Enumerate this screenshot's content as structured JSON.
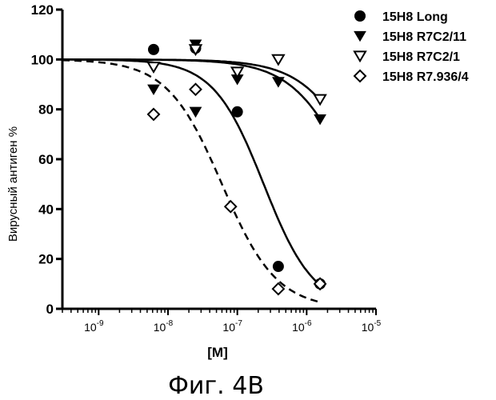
{
  "chart_data": {
    "type": "scatter",
    "title": "",
    "xlabel": "[M]",
    "ylabel": "Вирусный антиген %",
    "xscale": "log",
    "xlim": [
      3e-10,
      1e-05
    ],
    "ylim": [
      0,
      120
    ],
    "yticks": [
      0,
      20,
      40,
      60,
      80,
      100,
      120
    ],
    "xticks": [
      {
        "value": 1e-09,
        "base": "10",
        "exp": "-9"
      },
      {
        "value": 1e-08,
        "base": "10",
        "exp": "-8"
      },
      {
        "value": 1e-07,
        "base": "10",
        "exp": "-7"
      },
      {
        "value": 1e-06,
        "base": "10",
        "exp": "-6"
      },
      {
        "value": 1e-05,
        "base": "10",
        "exp": "-5"
      }
    ],
    "legend_position": "top-right",
    "series": [
      {
        "name": "15H8 Long",
        "marker": "filled-circle",
        "points": [
          [
            6.2e-09,
            104
          ],
          [
            2.5e-08,
            104.5
          ],
          [
            1e-07,
            79
          ],
          [
            3.9e-07,
            17
          ],
          [
            1.56e-06,
            10
          ]
        ],
        "fit": {
          "style": "solid",
          "top": 100,
          "bottom": 0,
          "ec50": 2.4e-07,
          "hill": 1.2
        }
      },
      {
        "name": "15H8 R7C2/11",
        "marker": "filled-triangle-down",
        "points": [
          [
            6.2e-09,
            88
          ],
          [
            2.5e-08,
            106
          ],
          [
            2.5e-08,
            79
          ],
          [
            1e-07,
            92
          ],
          [
            3.9e-07,
            91
          ],
          [
            1.56e-06,
            76
          ]
        ],
        "fit": {
          "style": "solid",
          "top": 100,
          "bottom": 0,
          "ec50": 5e-06,
          "hill": 1.0
        }
      },
      {
        "name": "15H8 R7C2/1",
        "marker": "open-triangle-down",
        "points": [
          [
            6.2e-09,
            97
          ],
          [
            2.5e-08,
            104
          ],
          [
            1e-07,
            95
          ],
          [
            3.9e-07,
            100
          ],
          [
            1.56e-06,
            84
          ]
        ],
        "fit": {
          "style": "solid",
          "top": 100,
          "bottom": 0,
          "ec50": 8e-06,
          "hill": 1.0
        }
      },
      {
        "name": "15H8 R7.936/4",
        "marker": "open-diamond",
        "points": [
          [
            6.2e-09,
            78
          ],
          [
            2.5e-08,
            88
          ],
          [
            8e-08,
            41
          ],
          [
            3.9e-07,
            8
          ],
          [
            1.56e-06,
            10
          ]
        ],
        "fit": {
          "style": "dashed",
          "top": 100,
          "bottom": 0,
          "ec50": 6e-08,
          "hill": 1.1
        }
      }
    ]
  },
  "caption": "Фиг. 4В"
}
